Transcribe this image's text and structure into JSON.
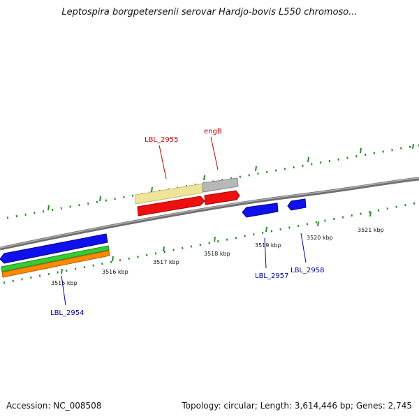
{
  "title": "Leptospira borgpetersenii serovar Hardjo-bovis L550 chromoso...",
  "accession": "Accession: NC_008508",
  "topology": "Topology: circular; Length: 3,614,446 bp; Genes: 2,745",
  "colors": {
    "backbone": "#808080",
    "tick": "#2a8a2a",
    "label_red": "#cc0000",
    "label_blue": "#0000aa",
    "blue": "#1010ee",
    "red": "#ee1010",
    "green": "#33cc33",
    "orange": "#ff8a00",
    "tan": "#eee49a",
    "gray": "#b8b8b8"
  },
  "scale_labels": [
    "3515 kbp",
    "3516 kbp",
    "3517 kbp",
    "3518 kbp",
    "3519 kbp",
    "3520 kbp",
    "3521 kbp"
  ],
  "gene_labels": [
    "LBL_2955",
    "engB",
    "LBL_2957",
    "LBL_2958",
    "LBL_2954"
  ],
  "features": [
    {
      "name": "LBL_2955",
      "color": "tan"
    },
    {
      "name": "LBL_2955",
      "color": "red"
    },
    {
      "name": "engB",
      "color": "gray"
    },
    {
      "name": "engB",
      "color": "red"
    },
    {
      "name": "LBL_2957",
      "color": "blue"
    },
    {
      "name": "LBL_2958",
      "color": "blue"
    },
    {
      "name": "LBL_2954",
      "color": "blue"
    },
    {
      "name": "LBL_2954",
      "color": "green"
    },
    {
      "name": "LBL_2954",
      "color": "orange"
    }
  ]
}
